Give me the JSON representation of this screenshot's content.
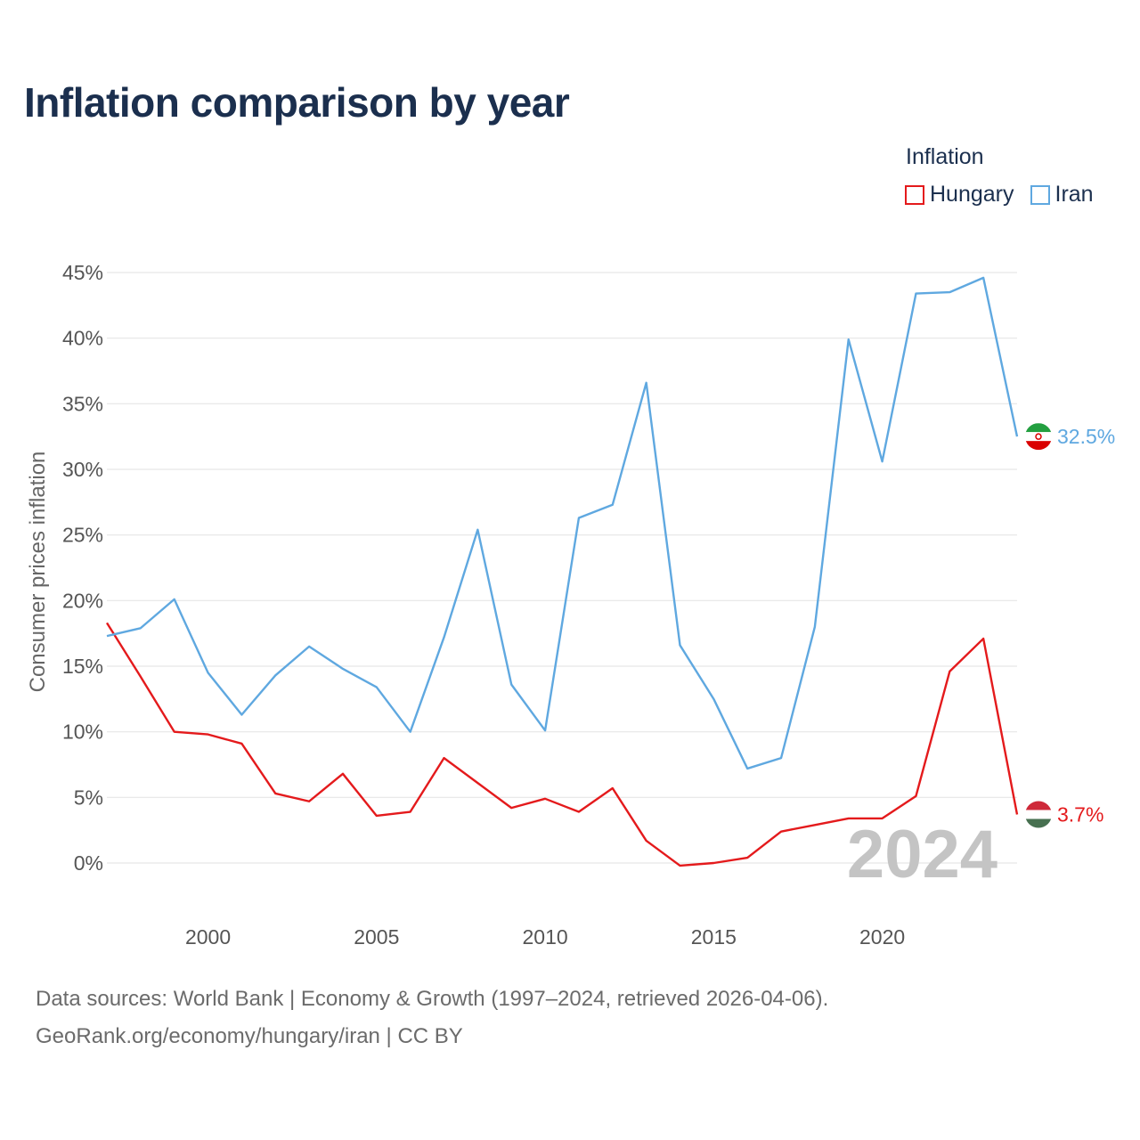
{
  "title": "Inflation comparison by year",
  "legend": {
    "title": "Inflation",
    "items": [
      {
        "name": "Hungary",
        "color": "#e41a1c"
      },
      {
        "name": "Iran",
        "color": "#5fa8e0"
      }
    ]
  },
  "footer": {
    "line1": "Data sources: World Bank | Economy & Growth (1997–2024, retrieved 2026-04-06).",
    "line2": "GeoRank.org/economy/hungary/iran | CC BY"
  },
  "chart_data": {
    "type": "line",
    "title": "Inflation comparison by year",
    "xlabel": "",
    "ylabel": "Consumer prices inflation",
    "xlim": [
      1997,
      2024
    ],
    "ylim": [
      0,
      45
    ],
    "x_ticks": [
      2000,
      2005,
      2010,
      2015,
      2020
    ],
    "y_ticks": [
      "0%",
      "5%",
      "10%",
      "15%",
      "20%",
      "25%",
      "30%",
      "35%",
      "40%",
      "45%"
    ],
    "y_tick_values": [
      0,
      5,
      10,
      15,
      20,
      25,
      30,
      35,
      40,
      45
    ],
    "year_watermark": "2024",
    "x": [
      1997,
      1998,
      1999,
      2000,
      2001,
      2002,
      2003,
      2004,
      2005,
      2006,
      2007,
      2008,
      2009,
      2010,
      2011,
      2012,
      2013,
      2014,
      2015,
      2016,
      2017,
      2018,
      2019,
      2020,
      2021,
      2022,
      2023,
      2024
    ],
    "series": [
      {
        "name": "Hungary",
        "color": "#e41a1c",
        "end_label": "3.7%",
        "values": [
          18.3,
          14.2,
          10.0,
          9.8,
          9.1,
          5.3,
          4.7,
          6.8,
          3.6,
          3.9,
          8.0,
          6.1,
          4.2,
          4.9,
          3.9,
          5.7,
          1.7,
          -0.2,
          0.0,
          0.4,
          2.4,
          2.9,
          3.4,
          3.4,
          5.1,
          14.6,
          17.1,
          3.7
        ]
      },
      {
        "name": "Iran",
        "color": "#5fa8e0",
        "end_label": "32.5%",
        "values": [
          17.3,
          17.9,
          20.1,
          14.5,
          11.3,
          14.3,
          16.5,
          14.8,
          13.4,
          10.0,
          17.2,
          25.4,
          13.6,
          10.1,
          26.3,
          27.3,
          36.6,
          16.6,
          12.5,
          7.2,
          8.0,
          18.0,
          39.9,
          30.6,
          43.4,
          43.5,
          44.6,
          32.5
        ]
      }
    ]
  }
}
